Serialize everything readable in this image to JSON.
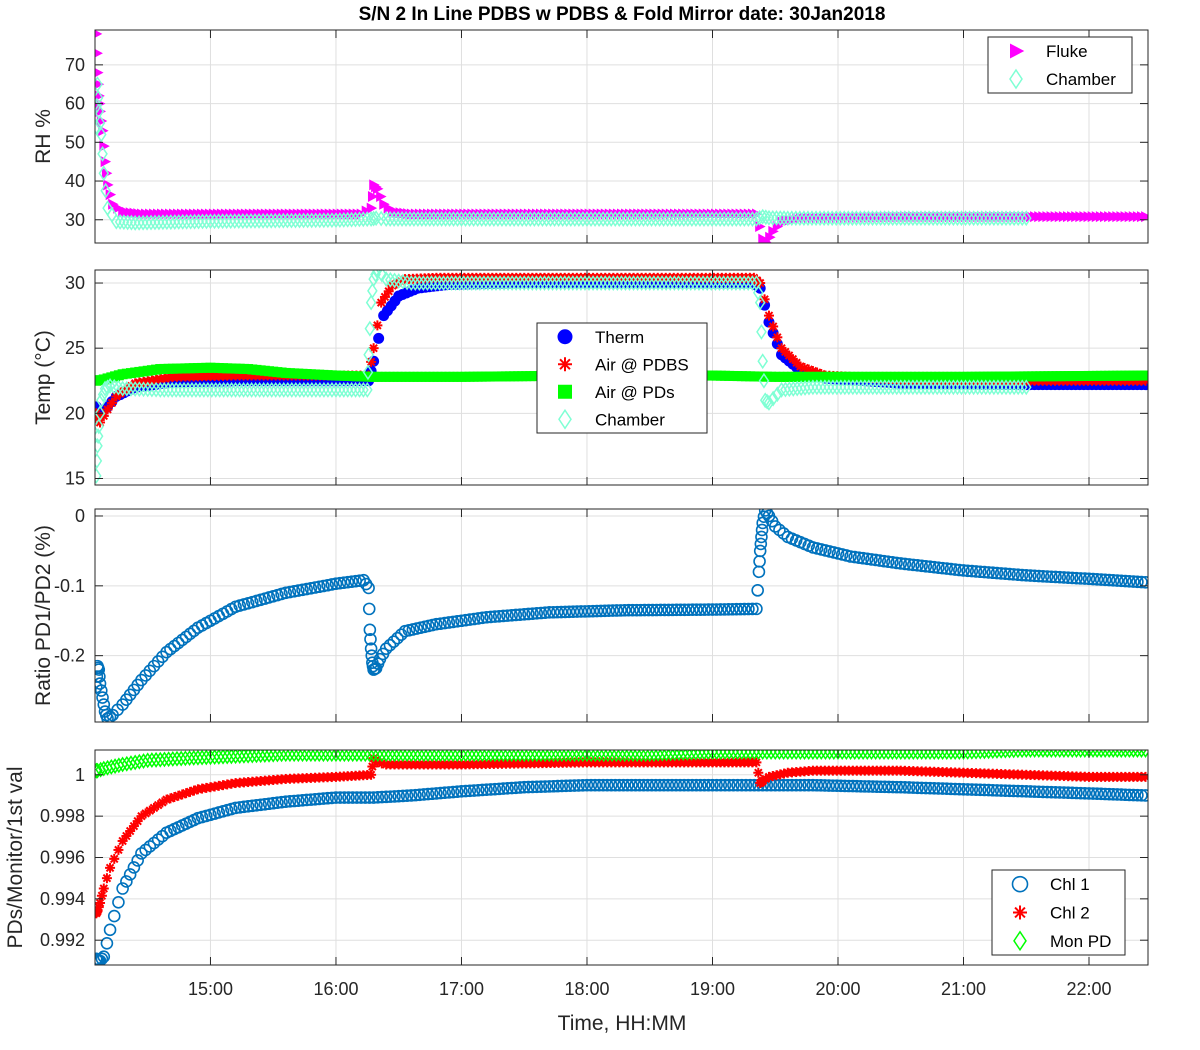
{
  "chart_data": {
    "title": "S/N 2 In Line PDBS w PDBS & Fold Mirror date: 30Jan2018",
    "xlabel": "Time, HH:MM",
    "x_tick_labels": [
      "15:00",
      "16:00",
      "17:00",
      "18:00",
      "19:00",
      "20:00",
      "21:00",
      "22:00"
    ],
    "xlim_hours": [
      14.08,
      22.47
    ],
    "colors": {
      "magenta": "#ff00ff",
      "aqua": "#7fffd4",
      "blue": "#0000ff",
      "red": "#ff0000",
      "green": "#00ff00",
      "matlab_blue": "#0072bd"
    },
    "panels": [
      {
        "id": "rh",
        "type": "scatter",
        "ylabel": "RH %",
        "ylim": [
          24,
          79
        ],
        "yticks": [
          30,
          40,
          50,
          60,
          70
        ],
        "ytick_labels": [
          "30",
          "40",
          "50",
          "60",
          "70"
        ],
        "grid": true,
        "legend_position": "top-right",
        "series": [
          {
            "name": "Fluke",
            "color": "#ff00ff",
            "marker": "triangle-right",
            "x": [
              14.09,
              14.1,
              14.11,
              14.12,
              14.14,
              14.16,
              14.18,
              14.22,
              14.3,
              14.45,
              14.8,
              15.5,
              16.2,
              16.28,
              16.3,
              16.33,
              16.38,
              16.45,
              16.6,
              17.5,
              18.5,
              19.35,
              19.4,
              19.43,
              19.48,
              19.55,
              19.7,
              20.5,
              21.5,
              22.45
            ],
            "y": [
              78,
              68,
              62,
              58,
              53,
              45,
              39,
              34,
              32,
              31.5,
              31.5,
              31.5,
              31.5,
              33,
              39,
              38,
              34,
              32,
              31.5,
              31.5,
              31.5,
              31.5,
              25,
              24,
              27,
              29.5,
              30.5,
              30.8,
              30.8,
              30.8
            ]
          },
          {
            "name": "Chamber",
            "color": "#7fffd4",
            "marker": "diamond",
            "x": [
              14.09,
              14.1,
              14.11,
              14.13,
              14.15,
              14.18,
              14.25,
              14.4,
              15.0,
              16.0,
              16.28,
              16.32,
              16.4,
              17.0,
              18.0,
              19.35,
              19.4,
              19.45,
              19.6,
              20.5,
              21.5
            ],
            "y": [
              54,
              65,
              58,
              52,
              42,
              33,
              29.5,
              29.2,
              29.6,
              29.9,
              30.2,
              30.4,
              30.2,
              30.2,
              30.2,
              30.2,
              30.8,
              30.5,
              30.4,
              30.4,
              30.4
            ]
          }
        ]
      },
      {
        "id": "temp",
        "type": "scatter",
        "ylabel": "Temp (°C)",
        "ylim": [
          14.5,
          31
        ],
        "yticks": [
          15,
          20,
          25,
          30
        ],
        "ytick_labels": [
          "15",
          "20",
          "25",
          "30"
        ],
        "grid": true,
        "legend_position": "center",
        "series": [
          {
            "name": "Therm",
            "color": "#0000ff",
            "marker": "circle-filled",
            "x": [
              14.09,
              14.12,
              14.18,
              14.25,
              14.4,
              14.7,
              15.2,
              16.0,
              16.26,
              16.3,
              16.38,
              16.5,
              16.65,
              16.9,
              17.5,
              18.5,
              19.33,
              19.38,
              19.45,
              19.55,
              19.7,
              19.9,
              20.5,
              21.5,
              22.45
            ],
            "y": [
              20.5,
              20.0,
              20.5,
              21.3,
              22.0,
              22.4,
              22.5,
              22.5,
              22.5,
              24.0,
              27.5,
              29.0,
              29.6,
              29.9,
              30.0,
              30.0,
              30.0,
              29.6,
              27.0,
              24.5,
              23.3,
              22.7,
              22.3,
              22.2,
              22.2
            ]
          },
          {
            "name": "Air @ PDBS",
            "color": "#ff0000",
            "marker": "asterisk",
            "x": [
              14.09,
              14.12,
              14.18,
              14.25,
              14.4,
              14.7,
              15.2,
              16.0,
              16.26,
              16.3,
              16.36,
              16.45,
              16.55,
              16.8,
              17.5,
              18.5,
              19.33,
              19.38,
              19.45,
              19.55,
              19.7,
              19.9,
              20.5,
              21.5,
              22.45
            ],
            "y": [
              20.0,
              19.3,
              20.3,
              21.3,
              22.3,
              22.8,
              22.9,
              22.9,
              22.9,
              25.0,
              28.5,
              29.8,
              30.3,
              30.4,
              30.4,
              30.4,
              30.4,
              30.0,
              27.5,
              25.0,
              23.6,
              22.9,
              22.6,
              22.5,
              22.5
            ]
          },
          {
            "name": "Air @ PDs",
            "color": "#00ff00",
            "marker": "square-filled",
            "x": [
              14.09,
              14.15,
              14.3,
              14.6,
              15.0,
              15.3,
              15.6,
              16.0,
              16.3,
              17.0,
              18.0,
              19.0,
              19.5,
              20.0,
              21.0,
              22.45
            ],
            "y": [
              22.5,
              22.6,
              23.0,
              23.4,
              23.5,
              23.4,
              23.1,
              22.9,
              22.8,
              22.8,
              22.9,
              22.9,
              22.8,
              22.8,
              22.8,
              22.9
            ]
          },
          {
            "name": "Chamber",
            "color": "#7fffd4",
            "marker": "diamond",
            "x": [
              14.09,
              14.1,
              14.11,
              14.13,
              14.16,
              14.2,
              14.3,
              14.6,
              15.2,
              16.0,
              16.25,
              16.26,
              16.28,
              16.3,
              16.33,
              16.4,
              16.6,
              17.5,
              18.5,
              19.35,
              19.38,
              19.4,
              19.42,
              19.45,
              19.55,
              19.8,
              20.5,
              21.5
            ],
            "y": [
              15.2,
              17.5,
              19.0,
              21.0,
              21.9,
              22.1,
              21.9,
              21.8,
              21.8,
              21.8,
              21.8,
              24.5,
              28.5,
              30.3,
              31.0,
              30.3,
              30.0,
              30.0,
              30.0,
              30.0,
              28.5,
              24.0,
              21.0,
              20.8,
              21.8,
              22.0,
              22.0,
              22.0
            ]
          }
        ]
      },
      {
        "id": "ratio",
        "type": "scatter",
        "ylabel": "Ratio PD1/PD2 (%)",
        "ylim": [
          -0.295,
          0.01
        ],
        "yticks": [
          -0.2,
          -0.1,
          0
        ],
        "ytick_labels": [
          "-0.2",
          "-0.1",
          "0"
        ],
        "grid": true,
        "series": [
          {
            "name": "Ratio",
            "color": "#0072bd",
            "marker": "circle-open",
            "x": [
              14.09,
              14.1,
              14.11,
              14.12,
              14.14,
              14.16,
              14.18,
              14.22,
              14.3,
              14.45,
              14.65,
              14.9,
              15.2,
              15.6,
              16.0,
              16.22,
              16.26,
              16.27,
              16.28,
              16.29,
              16.3,
              16.32,
              16.35,
              16.4,
              16.55,
              16.8,
              17.2,
              17.7,
              18.3,
              19.0,
              19.35,
              19.37,
              19.38,
              19.39,
              19.4,
              19.42,
              19.45,
              19.5,
              19.6,
              19.8,
              20.1,
              20.5,
              21.0,
              21.5,
              22.0,
              22.45
            ],
            "y": [
              -0.245,
              -0.215,
              -0.22,
              -0.24,
              -0.26,
              -0.28,
              -0.29,
              -0.285,
              -0.27,
              -0.235,
              -0.195,
              -0.16,
              -0.13,
              -0.11,
              -0.097,
              -0.092,
              -0.103,
              -0.163,
              -0.19,
              -0.21,
              -0.22,
              -0.218,
              -0.205,
              -0.19,
              -0.165,
              -0.155,
              -0.145,
              -0.138,
              -0.135,
              -0.134,
              -0.133,
              -0.08,
              -0.05,
              -0.03,
              -0.01,
              0.008,
              0.0,
              -0.015,
              -0.03,
              -0.045,
              -0.058,
              -0.068,
              -0.078,
              -0.085,
              -0.09,
              -0.095
            ]
          }
        ]
      },
      {
        "id": "pds",
        "type": "scatter",
        "ylabel": "PDs/Monitor/1st val",
        "ylim": [
          0.9908,
          1.0012
        ],
        "yticks": [
          0.992,
          0.994,
          0.996,
          0.998,
          1
        ],
        "ytick_labels": [
          "0.992",
          "0.994",
          "0.996",
          "0.998",
          "1"
        ],
        "grid": true,
        "legend_position": "bottom-right",
        "series": [
          {
            "name": "Chl 1",
            "color": "#0072bd",
            "marker": "circle-open",
            "x": [
              14.09,
              14.1,
              14.12,
              14.15,
              14.2,
              14.3,
              14.45,
              14.65,
              14.9,
              15.2,
              15.6,
              16.0,
              16.3,
              16.6,
              17.0,
              17.5,
              18.0,
              19.0,
              19.4,
              19.8,
              20.5,
              21.0,
              21.5,
              22.0,
              22.45
            ],
            "y": [
              0.9911,
              0.991,
              0.991,
              0.9912,
              0.9925,
              0.9945,
              0.9962,
              0.9972,
              0.9979,
              0.9984,
              0.9987,
              0.9989,
              0.9989,
              0.999,
              0.9992,
              0.9994,
              0.9995,
              0.9995,
              0.9995,
              0.9995,
              0.9994,
              0.9993,
              0.9992,
              0.9991,
              0.999
            ]
          },
          {
            "name": "Chl 2",
            "color": "#ff0000",
            "marker": "asterisk",
            "x": [
              14.09,
              14.1,
              14.12,
              14.15,
              14.2,
              14.3,
              14.45,
              14.65,
              14.9,
              15.2,
              15.6,
              16.0,
              16.28,
              16.3,
              16.33,
              16.4,
              16.6,
              17.0,
              18.0,
              19.0,
              19.35,
              19.38,
              19.4,
              19.45,
              19.6,
              19.8,
              20.5,
              21.0,
              21.5,
              22.0,
              22.45
            ],
            "y": [
              0.9933,
              0.9934,
              0.9938,
              0.9945,
              0.9955,
              0.9968,
              0.998,
              0.9988,
              0.9993,
              0.9996,
              0.9998,
              0.9999,
              1.0,
              1.0008,
              1.0006,
              1.0005,
              1.0005,
              1.0005,
              1.0006,
              1.0006,
              1.0006,
              0.9996,
              0.9997,
              0.9999,
              1.0001,
              1.0002,
              1.0002,
              1.0001,
              1.0,
              0.9999,
              0.9999
            ]
          },
          {
            "name": "Mon PD",
            "color": "#00ff00",
            "marker": "diamond",
            "x": [
              14.09,
              14.1,
              14.15,
              14.3,
              14.5,
              14.8,
              15.2,
              15.6,
              16.0,
              16.5,
              17.0,
              17.5,
              18.0,
              18.5,
              19.0,
              19.5,
              20.0,
              20.5,
              21.0,
              21.5,
              22.0,
              22.45
            ],
            "y": [
              1.0002,
              1.0002,
              1.0003,
              1.0005,
              1.0007,
              1.0008,
              1.0009,
              1.001,
              1.001,
              1.001,
              1.001,
              1.001,
              1.001,
              1.001,
              1.0011,
              1.0011,
              1.0011,
              1.0011,
              1.0011,
              1.0012,
              1.0012,
              1.0012
            ]
          }
        ]
      }
    ]
  }
}
